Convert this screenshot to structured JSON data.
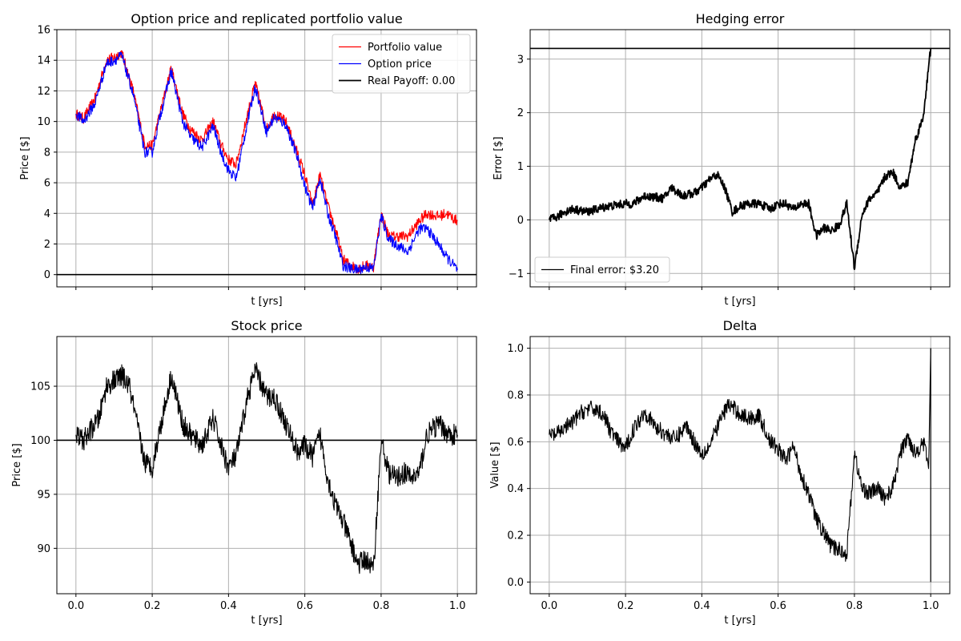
{
  "figure": {
    "background": "#ffffff"
  },
  "chart_data": [
    {
      "id": "option",
      "type": "line",
      "title": "Option price and replicated portfolio value",
      "xlabel": "t [yrs]",
      "ylabel": "Price [$]",
      "xlim": [
        -0.05,
        1.05
      ],
      "ylim": [
        -0.8,
        16
      ],
      "xticks": [
        0,
        0.2,
        0.4,
        0.6,
        0.8,
        1.0
      ],
      "xtick_labels_visible": false,
      "yticks": [
        0,
        2,
        4,
        6,
        8,
        10,
        12,
        14,
        16
      ],
      "ytick_labels": [
        "0",
        "2",
        "4",
        "6",
        "8",
        "10",
        "12",
        "14",
        "16"
      ],
      "grid": true,
      "legend_position": "top-right",
      "series": [
        {
          "name": "Portfolio value",
          "color": "#ff0000",
          "noise": 0.35,
          "x": [
            0,
            0.02,
            0.05,
            0.08,
            0.1,
            0.12,
            0.15,
            0.18,
            0.2,
            0.22,
            0.25,
            0.28,
            0.3,
            0.33,
            0.36,
            0.38,
            0.4,
            0.42,
            0.45,
            0.47,
            0.5,
            0.52,
            0.55,
            0.58,
            0.6,
            0.62,
            0.64,
            0.66,
            0.68,
            0.7,
            0.72,
            0.74,
            0.76,
            0.78,
            0.8,
            0.82,
            0.85,
            0.87,
            0.9,
            0.92,
            0.95,
            0.97,
            1.0
          ],
          "y": [
            10.5,
            10.2,
            11.5,
            14.0,
            14.2,
            14.5,
            12.0,
            8.5,
            8.4,
            10.5,
            13.5,
            10.5,
            9.5,
            8.8,
            10.0,
            8.5,
            7.5,
            7.2,
            10.5,
            12.5,
            9.5,
            10.5,
            10.0,
            8.0,
            6.5,
            4.5,
            6.5,
            4.5,
            3.0,
            1.0,
            0.6,
            0.4,
            0.6,
            0.5,
            4.0,
            2.5,
            2.5,
            2.5,
            3.5,
            4.0,
            3.8,
            4.0,
            3.5
          ]
        },
        {
          "name": "Option price",
          "color": "#0000ff",
          "noise": 0.35,
          "x": [
            0,
            0.02,
            0.05,
            0.08,
            0.1,
            0.12,
            0.15,
            0.18,
            0.2,
            0.22,
            0.25,
            0.28,
            0.3,
            0.33,
            0.36,
            0.38,
            0.4,
            0.42,
            0.45,
            0.47,
            0.5,
            0.52,
            0.55,
            0.58,
            0.6,
            0.62,
            0.64,
            0.66,
            0.68,
            0.7,
            0.72,
            0.74,
            0.76,
            0.78,
            0.8,
            0.82,
            0.85,
            0.87,
            0.9,
            0.92,
            0.95,
            0.97,
            1.0
          ],
          "y": [
            10.5,
            10.0,
            11.2,
            13.8,
            14.0,
            14.3,
            11.8,
            8.0,
            8.0,
            10.3,
            13.3,
            10.0,
            9.0,
            8.3,
            9.7,
            8.0,
            6.8,
            6.3,
            10.0,
            12.3,
            9.3,
            10.3,
            9.8,
            7.7,
            5.8,
            4.3,
            6.3,
            4.0,
            2.5,
            0.6,
            0.4,
            0.3,
            0.5,
            0.4,
            3.8,
            2.3,
            1.8,
            1.5,
            3.0,
            3.0,
            2.0,
            1.2,
            0.3
          ]
        },
        {
          "name": "Real Payoff: 0.00",
          "color": "#000000",
          "kind": "hline",
          "y": 0
        }
      ]
    },
    {
      "id": "error",
      "type": "line",
      "title": "Hedging error",
      "xlabel": "t [yrs]",
      "ylabel": "Error [$]",
      "xlim": [
        -0.05,
        1.05
      ],
      "ylim": [
        -1.25,
        3.55
      ],
      "xticks": [
        0,
        0.2,
        0.4,
        0.6,
        0.8,
        1.0
      ],
      "xtick_labels_visible": false,
      "yticks": [
        -1,
        0,
        1,
        2,
        3
      ],
      "ytick_labels": [
        "−1",
        "0",
        "1",
        "2",
        "3"
      ],
      "grid": true,
      "legend_position": "bottom-left",
      "series": [
        {
          "name": "Final error: $3.20",
          "color": "#000000",
          "noise": 0.08,
          "x": [
            0,
            0.02,
            0.04,
            0.06,
            0.1,
            0.15,
            0.2,
            0.22,
            0.25,
            0.3,
            0.32,
            0.35,
            0.38,
            0.4,
            0.42,
            0.44,
            0.46,
            0.48,
            0.5,
            0.52,
            0.55,
            0.58,
            0.6,
            0.62,
            0.64,
            0.66,
            0.68,
            0.7,
            0.72,
            0.74,
            0.76,
            0.78,
            0.8,
            0.82,
            0.84,
            0.86,
            0.88,
            0.9,
            0.92,
            0.94,
            0.96,
            0.98,
            1.0
          ],
          "y": [
            0.0,
            0.05,
            0.15,
            0.2,
            0.15,
            0.25,
            0.3,
            0.3,
            0.45,
            0.4,
            0.6,
            0.45,
            0.5,
            0.6,
            0.75,
            0.85,
            0.6,
            0.15,
            0.25,
            0.3,
            0.3,
            0.2,
            0.3,
            0.3,
            0.2,
            0.3,
            0.3,
            -0.3,
            -0.15,
            -0.2,
            -0.1,
            0.3,
            -0.9,
            0.1,
            0.4,
            0.5,
            0.8,
            0.9,
            0.6,
            0.7,
            1.5,
            1.9,
            3.2
          ]
        },
        {
          "name": "",
          "color": "#000000",
          "kind": "hline",
          "y": 3.2
        }
      ]
    },
    {
      "id": "stock",
      "type": "line",
      "title": "Stock price",
      "xlabel": "t [yrs]",
      "ylabel": "Price [$]",
      "xlim": [
        -0.05,
        1.05
      ],
      "ylim": [
        85.8,
        109.6
      ],
      "xticks": [
        0,
        0.2,
        0.4,
        0.6,
        0.8,
        1.0
      ],
      "xtick_labels": [
        "0.0",
        "0.2",
        "0.4",
        "0.6",
        "0.8",
        "1.0"
      ],
      "xtick_labels_visible": true,
      "yticks": [
        90,
        95,
        100,
        105
      ],
      "ytick_labels": [
        "90",
        "95",
        "100",
        "105"
      ],
      "grid": true,
      "series": [
        {
          "name": "",
          "color": "#000000",
          "noise": 1.0,
          "x": [
            0,
            0.02,
            0.04,
            0.06,
            0.08,
            0.1,
            0.12,
            0.14,
            0.16,
            0.18,
            0.2,
            0.22,
            0.25,
            0.28,
            0.3,
            0.33,
            0.36,
            0.38,
            0.4,
            0.42,
            0.45,
            0.47,
            0.5,
            0.52,
            0.55,
            0.58,
            0.6,
            0.62,
            0.64,
            0.66,
            0.68,
            0.7,
            0.72,
            0.74,
            0.76,
            0.78,
            0.8,
            0.82,
            0.84,
            0.86,
            0.88,
            0.9,
            0.92,
            0.95,
            0.98,
            1.0
          ],
          "y": [
            100.5,
            100.0,
            101.0,
            102.0,
            105.0,
            105.5,
            106.0,
            105.0,
            101.5,
            98.0,
            97.5,
            101.0,
            106.0,
            101.5,
            100.5,
            99.5,
            102.0,
            99.5,
            97.5,
            98.5,
            104.0,
            106.5,
            104.0,
            104.0,
            101.5,
            99.0,
            99.5,
            98.5,
            100.5,
            96.5,
            94.0,
            92.5,
            90.5,
            88.5,
            89.0,
            88.0,
            100.0,
            97.0,
            96.5,
            97.0,
            96.5,
            97.0,
            100.5,
            101.5,
            100.5,
            100.5
          ]
        },
        {
          "name": "",
          "color": "#000000",
          "kind": "hline",
          "y": 100
        }
      ]
    },
    {
      "id": "delta",
      "type": "line",
      "title": "Delta",
      "xlabel": "t [yrs]",
      "ylabel": "Value [$]",
      "xlim": [
        -0.05,
        1.05
      ],
      "ylim": [
        -0.05,
        1.05
      ],
      "xticks": [
        0,
        0.2,
        0.4,
        0.6,
        0.8,
        1.0
      ],
      "xtick_labels": [
        "0.0",
        "0.2",
        "0.4",
        "0.6",
        "0.8",
        "1.0"
      ],
      "xtick_labels_visible": true,
      "yticks": [
        0.0,
        0.2,
        0.4,
        0.6,
        0.8,
        1.0
      ],
      "ytick_labels": [
        "0.0",
        "0.2",
        "0.4",
        "0.6",
        "0.8",
        "1.0"
      ],
      "grid": true,
      "series": [
        {
          "name": "",
          "color": "#000000",
          "noise": 0.035,
          "x": [
            0,
            0.02,
            0.04,
            0.06,
            0.08,
            0.1,
            0.12,
            0.14,
            0.16,
            0.18,
            0.2,
            0.22,
            0.25,
            0.28,
            0.3,
            0.33,
            0.36,
            0.38,
            0.4,
            0.42,
            0.45,
            0.47,
            0.5,
            0.52,
            0.55,
            0.58,
            0.6,
            0.62,
            0.64,
            0.66,
            0.68,
            0.7,
            0.72,
            0.74,
            0.76,
            0.78,
            0.8,
            0.82,
            0.84,
            0.86,
            0.88,
            0.9,
            0.92,
            0.94,
            0.96,
            0.98,
            0.995,
            1.0
          ],
          "y": [
            0.63,
            0.63,
            0.66,
            0.68,
            0.72,
            0.74,
            0.74,
            0.72,
            0.65,
            0.6,
            0.57,
            0.65,
            0.73,
            0.66,
            0.64,
            0.61,
            0.67,
            0.6,
            0.55,
            0.58,
            0.7,
            0.76,
            0.72,
            0.7,
            0.71,
            0.6,
            0.57,
            0.52,
            0.58,
            0.46,
            0.38,
            0.27,
            0.21,
            0.15,
            0.14,
            0.12,
            0.55,
            0.4,
            0.38,
            0.4,
            0.36,
            0.4,
            0.55,
            0.62,
            0.55,
            0.6,
            0.5,
            1.0
          ]
        },
        {
          "name": "",
          "color": "#000000",
          "kind": "vline",
          "x": 1.0,
          "from": 0.0,
          "to": 1.0
        }
      ]
    }
  ]
}
